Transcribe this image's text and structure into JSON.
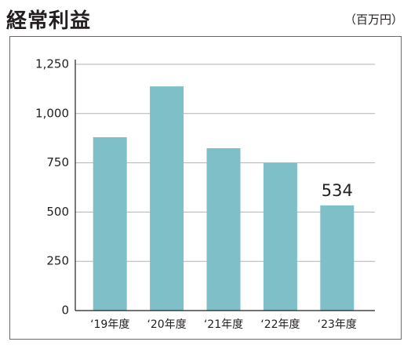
{
  "title": "経常利益",
  "unit": "（百万円）",
  "colors": {
    "bar": "#7fbfc7",
    "grid": "#b3b3b3",
    "axis": "#231f20"
  },
  "chart_data": {
    "type": "bar",
    "title": "経常利益",
    "xlabel": "",
    "ylabel": "",
    "unit": "（百万円）",
    "categories": [
      "‘19年度",
      "‘20年度",
      "‘21年度",
      "‘22年度",
      "‘23年度"
    ],
    "values": [
      880,
      1138,
      824,
      749,
      534
    ],
    "ylim": [
      0,
      1250
    ],
    "yticks": [
      0,
      250,
      500,
      750,
      1000,
      1250
    ],
    "ytick_labels": [
      "0",
      "250",
      "500",
      "750",
      "1,000",
      "1,250"
    ],
    "data_labels": [
      null,
      null,
      null,
      null,
      "534"
    ],
    "grid": true
  }
}
